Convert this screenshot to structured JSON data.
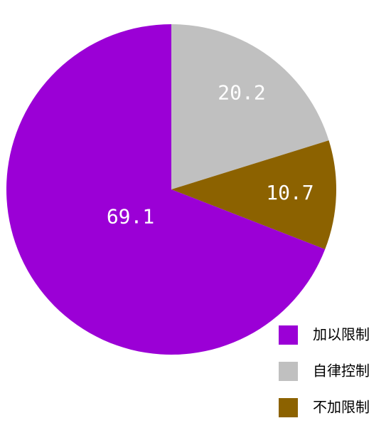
{
  "chart_data": {
    "type": "pie",
    "categories": [
      "加以限制",
      "自律控制",
      "不加限制"
    ],
    "values": [
      69.1,
      20.2,
      10.7
    ],
    "colors": [
      "#9b00d6",
      "#c0c0c0",
      "#8c6200"
    ],
    "legend": "bottom-right"
  }
}
